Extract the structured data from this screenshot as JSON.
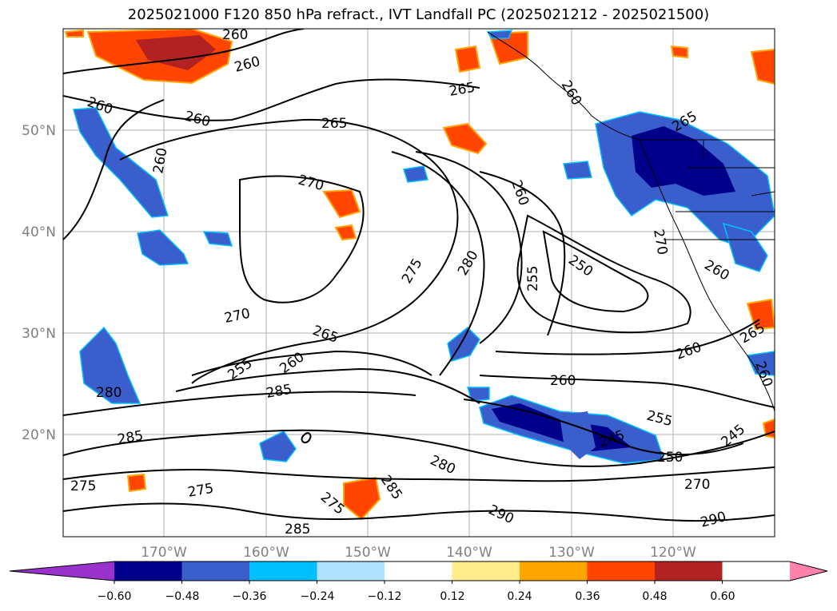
{
  "title": "2025021000 F120 850 hPa refract., IVT Landfall PC (2025021212 - 2025021500)",
  "map": {
    "lat_labels": [
      "50°N",
      "40°N",
      "30°N",
      "20°N"
    ],
    "lon_labels": [
      "170°W",
      "160°W",
      "150°W",
      "140°W",
      "130°W",
      "120°W"
    ],
    "contour_labels": [
      "260",
      "260",
      "260",
      "260",
      "260",
      "265",
      "265",
      "270",
      "270",
      "265",
      "260",
      "255",
      "280",
      "285",
      "285",
      "275",
      "275",
      "275",
      "280",
      "285",
      "290",
      "285",
      "290",
      "260",
      "275",
      "280",
      "255",
      "250",
      "260",
      "260",
      "255",
      "245",
      "250",
      "245",
      "270",
      "260",
      "265",
      "270",
      "260",
      "265",
      "260"
    ]
  },
  "colorbar": {
    "ticks": [
      "−0.60",
      "−0.48",
      "−0.36",
      "−0.24",
      "−0.12",
      "0.12",
      "0.24",
      "0.36",
      "0.48",
      "0.60"
    ],
    "colors": [
      "#9932cc",
      "#00008b",
      "#3a5fcd",
      "#00bfff",
      "#b0e2ff",
      "#ffffff",
      "#ffec8b",
      "#ffa500",
      "#ff4500",
      "#b22222",
      "#ff82ab"
    ]
  }
}
